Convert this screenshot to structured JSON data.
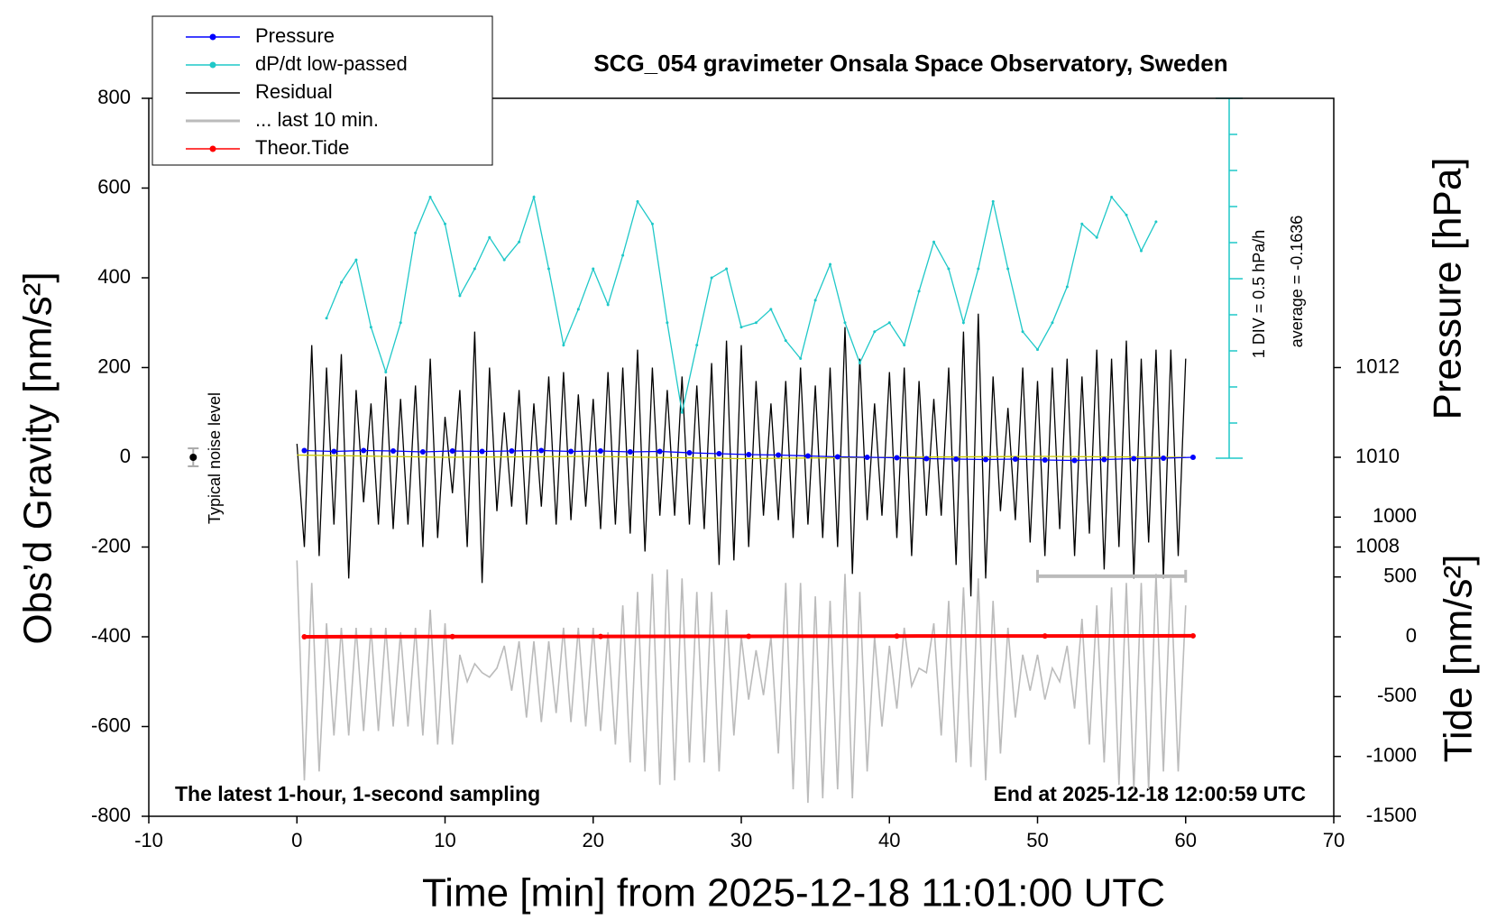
{
  "chart_data": {
    "type": "line",
    "title": "SCG_054 gravimeter Onsala Space Observatory, Sweden",
    "x_label": "Time [min] from 2025-12-18 11:01:00 UTC",
    "y_label": "Obs’d Gravity [nm/s²]",
    "y2_label": "Pressure [hPa]",
    "y3_label": "Tide [nm/s²]",
    "annotations": [
      "The latest 1-hour, 1-second sampling",
      "End at 2025-12-18 12:00:59 UTC",
      "1 DIV = 0.5 hPa/h",
      "average = -0.1636"
    ],
    "noise": {
      "label": "Typical noise level",
      "x": -7,
      "y": 0,
      "error": 20
    },
    "last_10min_bar": {
      "x": [
        50,
        60
      ],
      "y": -265
    },
    "xlim": [
      -10,
      70
    ],
    "xticks": [
      -10,
      0,
      10,
      20,
      30,
      40,
      50,
      60,
      70
    ],
    "ylim": [
      -800,
      800
    ],
    "yticks": [
      -800,
      -600,
      -400,
      -200,
      0,
      200,
      400,
      600,
      800
    ],
    "y2lim": [
      1002,
      1018
    ],
    "y2ticks": [
      1008,
      1010,
      1012
    ],
    "y3lim": [
      -1500,
      4500
    ],
    "y3ticks": [
      -1500,
      -1000,
      -500,
      0,
      500,
      1000
    ],
    "legend": "upper left",
    "series": [
      {
        "name": "Pressure",
        "color": "#0000ff",
        "axis": "y2",
        "marker": true,
        "x": [
          0.5,
          2.5,
          4.5,
          6.5,
          8.5,
          10.5,
          12.5,
          14.5,
          16.5,
          18.5,
          20.5,
          22.5,
          24.5,
          26.5,
          28.5,
          30.5,
          32.5,
          34.5,
          36.5,
          38.5,
          40.5,
          42.5,
          44.5,
          46.5,
          48.5,
          50.5,
          52.5,
          54.5,
          56.5,
          58.5,
          60.5
        ],
        "values": [
          1010.15,
          1010.13,
          1010.15,
          1010.14,
          1010.12,
          1010.14,
          1010.13,
          1010.14,
          1010.15,
          1010.13,
          1010.14,
          1010.12,
          1010.13,
          1010.1,
          1010.08,
          1010.06,
          1010.05,
          1010.03,
          1010.01,
          1010.0,
          1009.99,
          1009.97,
          1009.96,
          1009.95,
          1009.96,
          1009.94,
          1009.93,
          1009.95,
          1009.97,
          1009.98,
          1010.0
        ]
      },
      {
        "name": "dP/dt low-passed",
        "color": "#1fc8c8",
        "marker": true,
        "x": [
          2,
          3,
          4,
          5,
          6,
          7,
          8,
          9,
          10,
          11,
          12,
          13,
          14,
          15,
          16,
          17,
          18,
          19,
          20,
          21,
          22,
          23,
          24,
          25,
          26,
          27,
          28,
          29,
          30,
          31,
          32,
          33,
          34,
          35,
          36,
          37,
          38,
          39,
          40,
          41,
          42,
          43,
          44,
          45,
          46,
          47,
          48,
          49,
          50,
          51,
          52,
          53,
          54,
          55,
          56,
          57,
          58
        ],
        "values": [
          310,
          390,
          440,
          290,
          190,
          300,
          500,
          580,
          520,
          360,
          420,
          490,
          440,
          480,
          580,
          420,
          250,
          330,
          420,
          340,
          450,
          570,
          520,
          300,
          100,
          250,
          400,
          420,
          290,
          300,
          330,
          260,
          220,
          350,
          430,
          300,
          210,
          280,
          300,
          250,
          370,
          480,
          420,
          300,
          420,
          570,
          420,
          280,
          240,
          300,
          380,
          520,
          490,
          580,
          540,
          460,
          525
        ]
      },
      {
        "name": "Residual",
        "color": "#000000",
        "x": [
          0,
          0.5,
          1,
          1.5,
          2,
          2.5,
          3,
          3.5,
          4,
          4.5,
          5,
          5.5,
          6,
          6.5,
          7,
          7.5,
          8,
          8.5,
          9,
          9.5,
          10,
          10.5,
          11,
          11.5,
          12,
          12.5,
          13,
          13.5,
          14,
          14.5,
          15,
          15.5,
          16,
          16.5,
          17,
          17.5,
          18,
          18.5,
          19,
          19.5,
          20,
          20.5,
          21,
          21.5,
          22,
          22.5,
          23,
          23.5,
          24,
          24.5,
          25,
          25.5,
          26,
          26.5,
          27,
          27.5,
          28,
          28.5,
          29,
          29.5,
          30,
          30.5,
          31,
          31.5,
          32,
          32.5,
          33,
          33.5,
          34,
          34.5,
          35,
          35.5,
          36,
          36.5,
          37,
          37.5,
          38,
          38.5,
          39,
          39.5,
          40,
          40.5,
          41,
          41.5,
          42,
          42.5,
          43,
          43.5,
          44,
          44.5,
          45,
          45.5,
          46,
          46.5,
          47,
          47.5,
          48,
          48.5,
          49,
          49.5,
          50,
          50.5,
          51,
          51.5,
          52,
          52.5,
          53,
          53.5,
          54,
          54.5,
          55,
          55.5,
          56,
          56.5,
          57,
          57.5,
          58,
          58.5,
          59,
          59.5,
          60
        ],
        "values": [
          30,
          -200,
          250,
          -220,
          200,
          -150,
          230,
          -270,
          150,
          -100,
          120,
          -150,
          180,
          -160,
          130,
          -150,
          160,
          -200,
          220,
          -180,
          90,
          -80,
          150,
          -200,
          280,
          -280,
          200,
          -120,
          100,
          -110,
          150,
          -150,
          120,
          -110,
          180,
          -150,
          190,
          -140,
          140,
          -110,
          130,
          -160,
          190,
          -150,
          200,
          -170,
          240,
          -210,
          200,
          -130,
          150,
          -130,
          180,
          -150,
          160,
          -160,
          210,
          -240,
          260,
          -230,
          250,
          -200,
          170,
          -130,
          120,
          -140,
          170,
          -180,
          200,
          -150,
          160,
          -180,
          200,
          -200,
          290,
          -260,
          220,
          -140,
          120,
          -130,
          190,
          -180,
          200,
          -220,
          170,
          -130,
          130,
          -130,
          200,
          -240,
          280,
          -310,
          320,
          -270,
          180,
          -120,
          110,
          -140,
          200,
          -190,
          170,
          -220,
          200,
          -160,
          220,
          -220,
          180,
          -170,
          240,
          -250,
          220,
          -200,
          260,
          -270,
          220,
          -190,
          240,
          -270,
          240,
          -220,
          220
        ]
      },
      {
        "name": "... last 10 min.",
        "color": "#bbbbbb",
        "x": [
          0,
          0.5,
          1,
          1.5,
          2,
          2.5,
          3,
          3.5,
          4,
          4.5,
          5,
          5.5,
          6,
          6.5,
          7,
          7.5,
          8,
          8.5,
          9,
          9.5,
          10,
          10.5,
          11,
          11.5,
          12,
          12.5,
          13,
          13.5,
          14,
          14.5,
          15,
          15.5,
          16,
          16.5,
          17,
          17.5,
          18,
          18.5,
          19,
          19.5,
          20,
          20.5,
          21,
          21.5,
          22,
          22.5,
          23,
          23.5,
          24,
          24.5,
          25,
          25.5,
          26,
          26.5,
          27,
          27.5,
          28,
          28.5,
          29,
          29.5,
          30,
          30.5,
          31,
          31.5,
          32,
          32.5,
          33,
          33.5,
          34,
          34.5,
          35,
          35.5,
          36,
          36.5,
          37,
          37.5,
          38,
          38.5,
          39,
          39.5,
          40,
          40.5,
          41,
          41.5,
          42,
          42.5,
          43,
          43.5,
          44,
          44.5,
          45,
          45.5,
          46,
          46.5,
          47,
          47.5,
          48,
          48.5,
          49,
          49.5,
          50,
          50.5,
          51,
          51.5,
          52,
          52.5,
          53,
          53.5,
          54,
          54.5,
          55,
          55.5,
          56,
          56.5,
          57,
          57.5,
          58,
          58.5,
          59,
          59.5,
          60
        ],
        "values": [
          -230,
          -720,
          -280,
          -700,
          -370,
          -620,
          -380,
          -620,
          -380,
          -610,
          -380,
          -610,
          -380,
          -600,
          -390,
          -600,
          -380,
          -620,
          -340,
          -640,
          -370,
          -640,
          -440,
          -500,
          -460,
          -480,
          -490,
          -470,
          -420,
          -520,
          -410,
          -580,
          -410,
          -590,
          -410,
          -570,
          -380,
          -590,
          -380,
          -600,
          -380,
          -610,
          -390,
          -640,
          -330,
          -680,
          -300,
          -700,
          -260,
          -730,
          -250,
          -720,
          -270,
          -680,
          -300,
          -680,
          -300,
          -700,
          -340,
          -620,
          -400,
          -540,
          -430,
          -530,
          -400,
          -660,
          -280,
          -740,
          -280,
          -770,
          -310,
          -760,
          -320,
          -740,
          -260,
          -760,
          -300,
          -700,
          -400,
          -600,
          -420,
          -560,
          -380,
          -510,
          -470,
          -480,
          -370,
          -620,
          -320,
          -680,
          -290,
          -690,
          -270,
          -720,
          -320,
          -660,
          -380,
          -580,
          -440,
          -520,
          -440,
          -540,
          -470,
          -500,
          -420,
          -560,
          -360,
          -640,
          -330,
          -680,
          -290,
          -730,
          -280,
          -740,
          -280,
          -740,
          -260,
          -700,
          -270,
          -700,
          -330
        ]
      },
      {
        "name": "Theor.Tide",
        "color": "#ff0000",
        "axis": "y3",
        "marker": true,
        "x": [
          0.5,
          10.5,
          20.5,
          30.5,
          40.5,
          50.5,
          60.5
        ],
        "values": [
          0,
          2,
          3,
          4,
          6,
          7,
          8
        ]
      },
      {
        "color": "#c8c800",
        "x": [
          0,
          10,
          20,
          30,
          40,
          50,
          60
        ],
        "values": [
          5,
          0,
          2,
          -3,
          0,
          2,
          0
        ]
      }
    ]
  }
}
